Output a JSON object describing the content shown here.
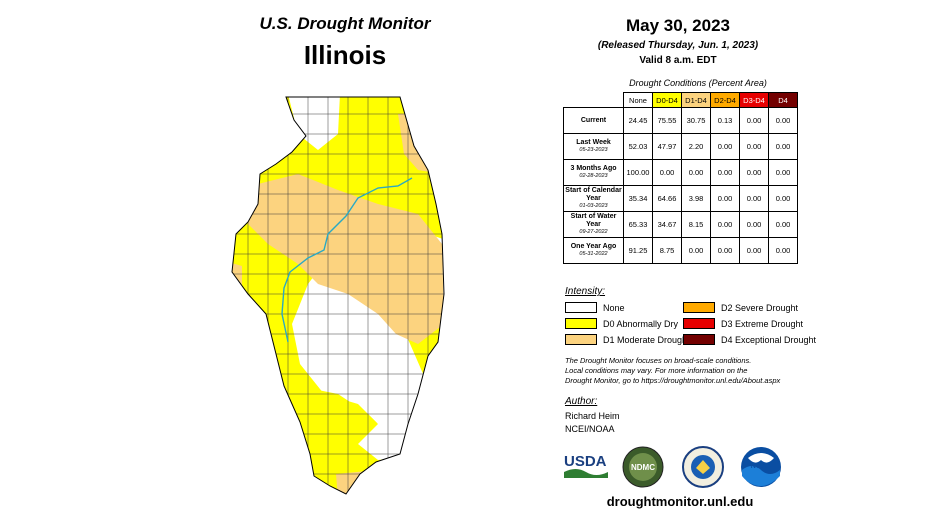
{
  "header": {
    "title": "U.S. Drought Monitor",
    "state": "Illinois"
  },
  "info": {
    "date": "May 30, 2023",
    "released": "(Released Thursday, Jun. 1, 2023)",
    "valid": "Valid 8 a.m. EDT"
  },
  "table": {
    "caption": "Drought Conditions (Percent Area)",
    "columns": [
      {
        "label": "None",
        "color": "#ffffff"
      },
      {
        "label": "D0-D4",
        "color": "#ffff00"
      },
      {
        "label": "D1-D4",
        "color": "#fcd37f"
      },
      {
        "label": "D2-D4",
        "color": "#ffaa00"
      },
      {
        "label": "D3-D4",
        "color": "#e60000"
      },
      {
        "label": "D4",
        "color": "#730000"
      }
    ],
    "rows": [
      {
        "label": "Current",
        "sub": "",
        "values": [
          "24.45",
          "75.55",
          "30.75",
          "0.13",
          "0.00",
          "0.00"
        ]
      },
      {
        "label": "Last Week",
        "sub": "05-23-2023",
        "values": [
          "52.03",
          "47.97",
          "2.20",
          "0.00",
          "0.00",
          "0.00"
        ]
      },
      {
        "label": "3 Months Ago",
        "sub": "02-28-2023",
        "values": [
          "100.00",
          "0.00",
          "0.00",
          "0.00",
          "0.00",
          "0.00"
        ]
      },
      {
        "label": "Start of Calendar Year",
        "sub": "01-03-2023",
        "values": [
          "35.34",
          "64.66",
          "3.98",
          "0.00",
          "0.00",
          "0.00"
        ]
      },
      {
        "label": "Start of Water Year",
        "sub": "09-27-2022",
        "values": [
          "65.33",
          "34.67",
          "8.15",
          "0.00",
          "0.00",
          "0.00"
        ]
      },
      {
        "label": "One Year Ago",
        "sub": "05-31-2022",
        "values": [
          "91.25",
          "8.75",
          "0.00",
          "0.00",
          "0.00",
          "0.00"
        ]
      }
    ]
  },
  "legend": {
    "title": "Intensity:",
    "items": [
      {
        "label": "None",
        "color": "#ffffff"
      },
      {
        "label": "D0 Abnormally Dry",
        "color": "#ffff00"
      },
      {
        "label": "D1 Moderate Drought",
        "color": "#fcd37f"
      },
      {
        "label": "D2 Severe Drought",
        "color": "#ffaa00"
      },
      {
        "label": "D3 Extreme Drought",
        "color": "#e60000"
      },
      {
        "label": "D4 Exceptional Drought",
        "color": "#730000"
      }
    ]
  },
  "note": {
    "line1": "The Drought Monitor focuses on broad-scale conditions.",
    "line2": "Local conditions may vary. For more information on the",
    "line3": "Drought Monitor, go to https://droughtmonitor.unl.edu/About.aspx"
  },
  "author": {
    "title": "Author:",
    "name": "Richard Heim",
    "org": "NCEI/NOAA"
  },
  "logos": {
    "usda": "USDA",
    "ndmc": "NDMC",
    "noaa": "NOAA"
  },
  "footer": {
    "site": "droughtmonitor.unl.edu"
  }
}
